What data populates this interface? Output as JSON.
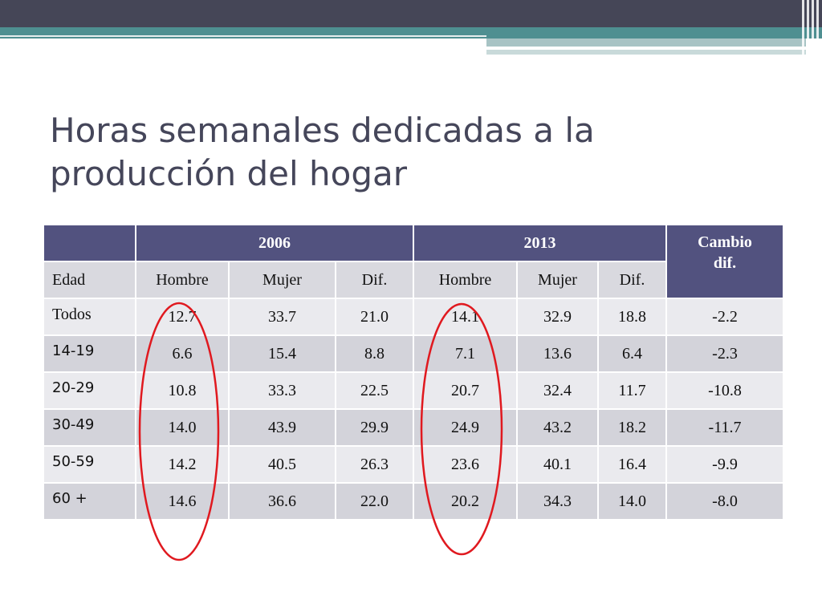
{
  "title": "Horas semanales dedicadas a la producción del hogar",
  "table": {
    "years": [
      "2006",
      "2013"
    ],
    "cambio_header": "Cambio dif.",
    "subheaders": [
      "Edad",
      "Hombre",
      "Mujer",
      "Dif.",
      "Hombre",
      "Mujer",
      "Dif."
    ],
    "rows": [
      {
        "label": "Todos",
        "values": [
          "12.7",
          "33.7",
          "21.0",
          "14.1",
          "32.9",
          "18.8",
          "-2.2"
        ]
      },
      {
        "label": "14-19",
        "values": [
          "6.6",
          "15.4",
          "8.8",
          "7.1",
          "13.6",
          "6.4",
          "-2.3"
        ]
      },
      {
        "label": "20-29",
        "values": [
          "10.8",
          "33.3",
          "22.5",
          "20.7",
          "32.4",
          "11.7",
          "-10.8"
        ]
      },
      {
        "label": "30-49",
        "values": [
          "14.0",
          "43.9",
          "29.9",
          "24.9",
          "43.2",
          "18.2",
          "-11.7"
        ]
      },
      {
        "label": "50-59",
        "values": [
          "14.2",
          "40.5",
          "26.3",
          "23.6",
          "40.1",
          "16.4",
          "-9.9"
        ]
      },
      {
        "label": "60 +",
        "values": [
          "14.6",
          "36.6",
          "22.0",
          "20.2",
          "34.3",
          "14.0",
          "-8.0"
        ]
      }
    ]
  },
  "colors": {
    "header": "#52527f",
    "highlight_ellipse": "#e0191f",
    "title": "#45465a"
  }
}
